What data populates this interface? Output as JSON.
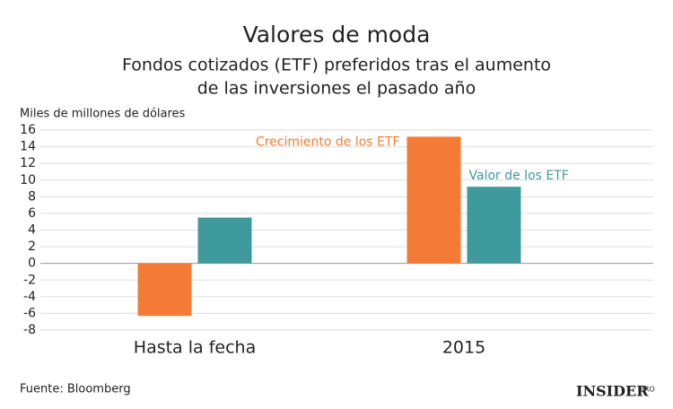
{
  "chart_data": {
    "type": "bar",
    "title": "Valores de moda",
    "subtitle": [
      "Fondos cotizados (ETF) preferidos tras el aumento",
      "de las inversiones el pasado año"
    ],
    "y_label": "Miles de millones de dólares",
    "categories": [
      "Hasta la fecha",
      "2015"
    ],
    "series": [
      {
        "name": "Crecimiento de los ETF",
        "color": "#f47b35",
        "values": [
          -6.3,
          15.2
        ]
      },
      {
        "name": "Valor de los ETF",
        "color": "#3f9a9d",
        "values": [
          5.5,
          9.2
        ]
      }
    ],
    "ylim": [
      -8,
      16
    ],
    "yticks": [
      -8,
      -6,
      -4,
      -2,
      0,
      2,
      4,
      6,
      8,
      10,
      12,
      14,
      16
    ],
    "grid": true,
    "source": "Fuente: Bloomberg",
    "logo": {
      "text": "INSIDER",
      "badge": "PRO"
    }
  }
}
